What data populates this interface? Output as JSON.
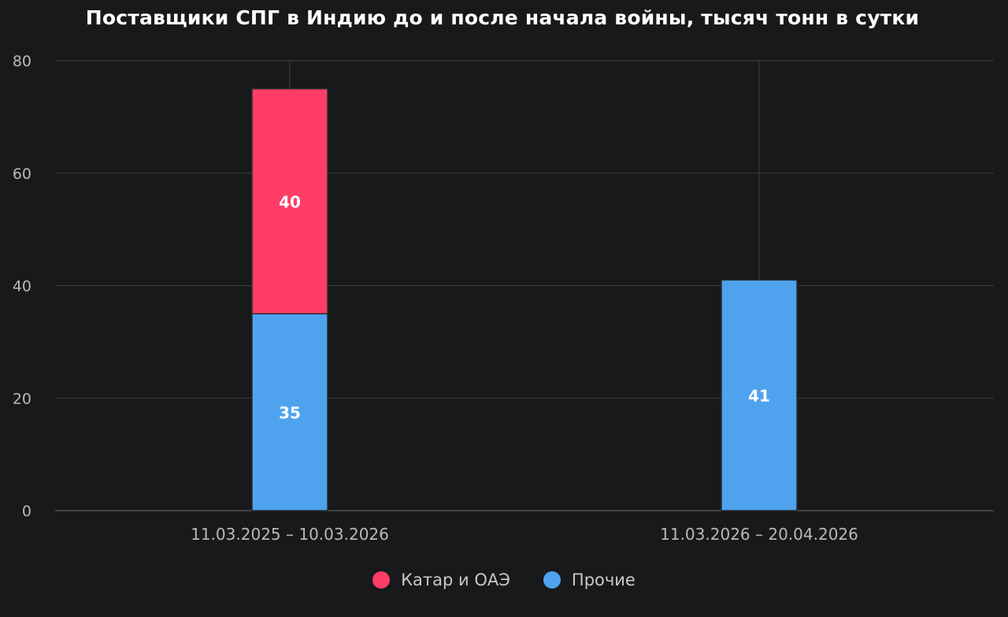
{
  "chart_data": {
    "type": "bar",
    "stacked": true,
    "title": "Поставщики СПГ в Индию до и после начала войны, тысяч тонн в сутки",
    "xlabel": "",
    "ylabel": "",
    "categories": [
      "11.03.2025 – 10.03.2026",
      "11.03.2026 – 20.04.2026"
    ],
    "ylim": [
      0,
      80
    ],
    "yticks": [
      0,
      20,
      40,
      60,
      80
    ],
    "grid": true,
    "legend_position": "bottom-center",
    "series": [
      {
        "name": "Прочие",
        "color": "#4fa3ee",
        "values": [
          35,
          41
        ]
      },
      {
        "name": "Катар и ОАЭ",
        "color": "#ff3d66",
        "values": [
          40,
          null
        ]
      }
    ],
    "data_labels": [
      [
        "35",
        "41"
      ],
      [
        "40",
        ""
      ]
    ],
    "legend": [
      {
        "name": "Катар и ОАЭ",
        "color": "#ff3d66"
      },
      {
        "name": "Прочие",
        "color": "#4fa3ee"
      }
    ]
  }
}
